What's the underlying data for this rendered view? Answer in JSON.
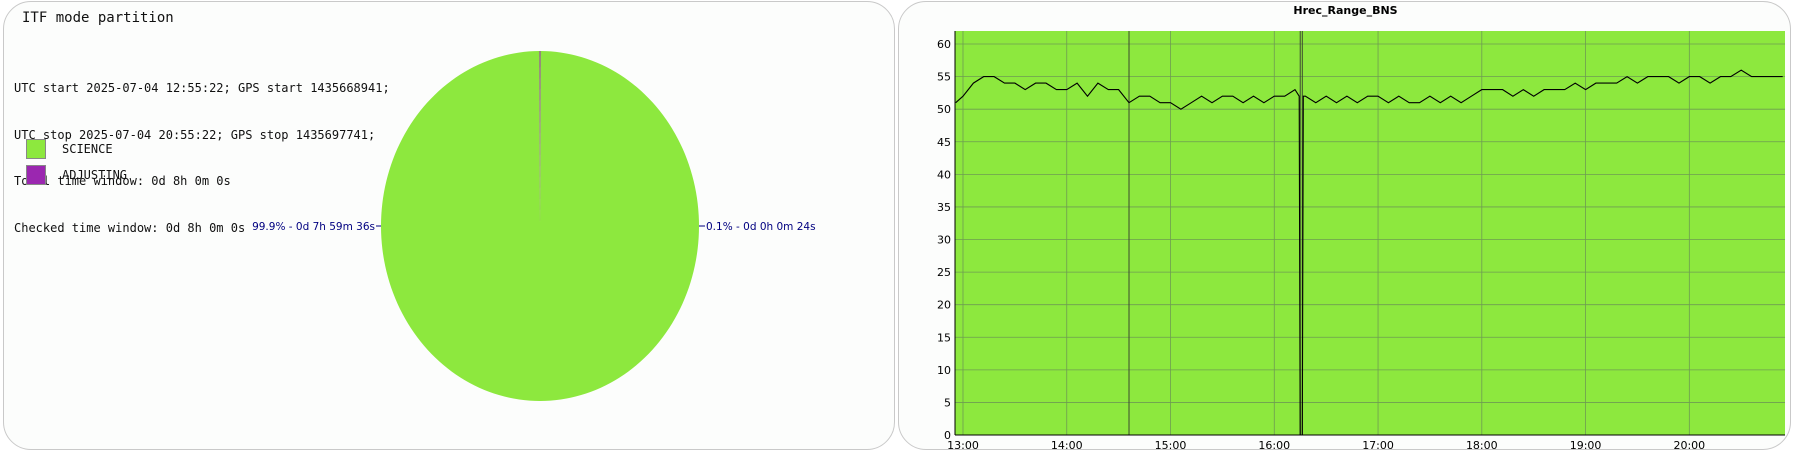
{
  "pie_panel": {
    "title": "ITF mode partition",
    "info_lines": [
      "UTC start 2025-07-04 12:55:22; GPS start 1435668941;",
      "UTC stop 2025-07-04 20:55:22; GPS stop 1435697741;",
      "Total time window: 0d 8h 0m 0s",
      "Checked time window: 0d 8h 0m 0s"
    ],
    "legend": [
      {
        "label": "SCIENCE",
        "color": "#8de83e"
      },
      {
        "label": "ADJUSTING",
        "color": "#9b27b0"
      }
    ]
  },
  "line_panel": {
    "title": "Hrec_Range_BNS"
  },
  "chart_data": [
    {
      "type": "pie",
      "slices": [
        {
          "label": "SCIENCE",
          "value": 99.9,
          "color": "#8de83e",
          "annotation": "99.9% - 0d 7h 59m 36s"
        },
        {
          "label": "ADJUSTING",
          "value": 0.1,
          "color": "#9b27b0",
          "annotation": "0.1% - 0d 0h 0m 24s"
        }
      ]
    },
    {
      "type": "line",
      "title": "Hrec_Range_BNS",
      "x_unit": "hours UTC (2025-07-04)",
      "xlim": [
        12.923,
        20.922
      ],
      "ylim": [
        0,
        62
      ],
      "xticks": [
        13,
        14,
        15,
        16,
        17,
        18,
        19,
        20
      ],
      "xtick_labels": [
        "13:00",
        "14:00",
        "15:00",
        "16:00",
        "17:00",
        "18:00",
        "19:00",
        "20:00"
      ],
      "yticks": [
        0,
        5,
        10,
        15,
        20,
        25,
        30,
        35,
        40,
        45,
        50,
        55,
        60
      ],
      "grid": true,
      "background_color": "#8de83e",
      "line_color": "#000000",
      "gap_markers_x": [
        14.6,
        16.25,
        16.27
      ],
      "series": [
        {
          "x": [
            12.93,
            13.0,
            13.1,
            13.2,
            13.3,
            13.4,
            13.5,
            13.6,
            13.7,
            13.8,
            13.9,
            14.0,
            14.1,
            14.2,
            14.3,
            14.4,
            14.5,
            14.6,
            14.7,
            14.8,
            14.9,
            15.0,
            15.1,
            15.2,
            15.3,
            15.4,
            15.5,
            15.6,
            15.7,
            15.8,
            15.9,
            16.0,
            16.1,
            16.2,
            16.24,
            16.25,
            16.27,
            16.28,
            16.3,
            16.4,
            16.5,
            16.6,
            16.7,
            16.8,
            16.9,
            17.0,
            17.1,
            17.2,
            17.3,
            17.4,
            17.5,
            17.6,
            17.7,
            17.8,
            17.9,
            18.0,
            18.1,
            18.2,
            18.3,
            18.4,
            18.5,
            18.6,
            18.7,
            18.8,
            18.9,
            19.0,
            19.1,
            19.2,
            19.3,
            19.4,
            19.5,
            19.6,
            19.7,
            19.8,
            19.9,
            20.0,
            20.1,
            20.2,
            20.3,
            20.4,
            20.5,
            20.6,
            20.7,
            20.8,
            20.9
          ],
          "y": [
            51,
            52,
            54,
            55,
            55,
            54,
            54,
            53,
            54,
            54,
            53,
            53,
            54,
            52,
            54,
            53,
            53,
            51,
            52,
            52,
            51,
            51,
            50,
            51,
            52,
            51,
            52,
            52,
            51,
            52,
            51,
            52,
            52,
            53,
            52,
            0,
            0,
            52,
            52,
            51,
            52,
            51,
            52,
            51,
            52,
            52,
            51,
            52,
            51,
            51,
            52,
            51,
            52,
            51,
            52,
            53,
            53,
            53,
            52,
            53,
            52,
            53,
            53,
            53,
            54,
            53,
            54,
            54,
            54,
            55,
            54,
            55,
            55,
            55,
            54,
            55,
            55,
            54,
            55,
            55,
            56,
            55,
            55,
            55,
            55
          ]
        }
      ]
    }
  ]
}
